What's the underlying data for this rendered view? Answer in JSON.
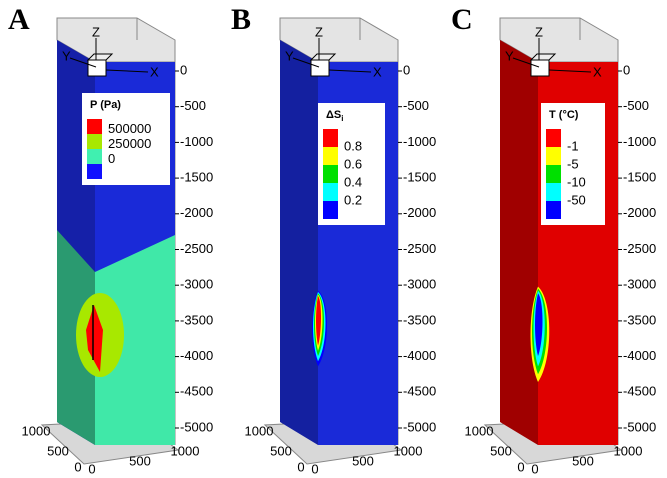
{
  "panels": [
    {
      "label": "A",
      "legend_title": "P (Pa)",
      "legend_colors": [
        "#ff0000",
        "#a8e800",
        "#40f0b0",
        "#1010ff"
      ],
      "legend_labels": [
        "500000",
        "250000",
        "0"
      ],
      "fill": "#1a2ad8",
      "side": "#1520a8",
      "lower_fill": "#40e8a8",
      "lower_side": "#2a9a70"
    },
    {
      "label": "B",
      "legend_title": "ΔS",
      "legend_title_sub": "i",
      "legend_colors": [
        "#ff0000",
        "#ffff00",
        "#00e000",
        "#00ffff",
        "#0000ff"
      ],
      "legend_labels": [
        "0.8",
        "0.6",
        "0.4",
        "0.2"
      ],
      "fill": "#1a2ad8",
      "side": "#1420a0"
    },
    {
      "label": "C",
      "legend_title": "T (°C)",
      "legend_colors": [
        "#ff0000",
        "#ffff00",
        "#00e000",
        "#00ffff",
        "#0000ff"
      ],
      "legend_labels": [
        "-1",
        "-5",
        "-10",
        "-50"
      ],
      "fill": "#e00000",
      "side": "#a00000"
    }
  ],
  "axes": {
    "z_label": "Z",
    "y_label": "Y",
    "x_label": "X",
    "z_ticks": [
      "0",
      "-500",
      "-1000",
      "-1500",
      "-2000",
      "-2500",
      "-3000",
      "-3500",
      "-4000",
      "-4500",
      "-5000"
    ],
    "y_ticks": [
      "1000",
      "500",
      "0"
    ],
    "x_ticks": [
      "0",
      "500",
      "1000"
    ]
  }
}
